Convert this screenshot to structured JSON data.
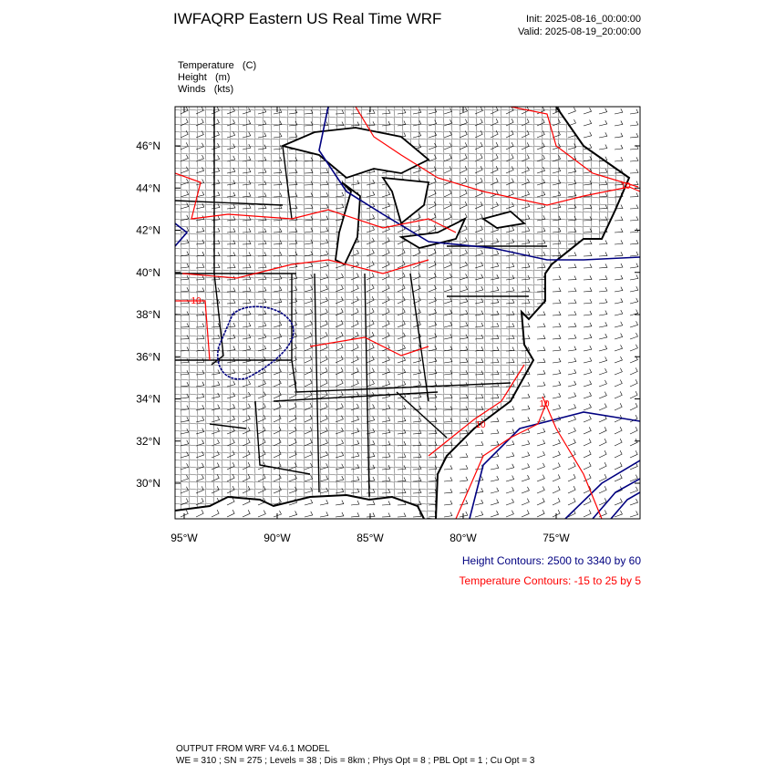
{
  "header": {
    "title": "IWFAQRP Eastern US Real Time WRF",
    "init": "Init: 2025-08-16_00:00:00",
    "valid": "Valid: 2025-08-19_20:00:00"
  },
  "fields": [
    "Temperature   (C)",
    "Height   (m)",
    "Winds   (kts)"
  ],
  "map": {
    "lon_ticks": [
      {
        "value": -95,
        "label": "95°W"
      },
      {
        "value": -90,
        "label": "90°W"
      },
      {
        "value": -85,
        "label": "85°W"
      },
      {
        "value": -80,
        "label": "80°W"
      },
      {
        "value": -75,
        "label": "75°W"
      }
    ],
    "lat_ticks": [
      {
        "value": 46,
        "label": "46°N"
      },
      {
        "value": 44,
        "label": "44°N"
      },
      {
        "value": 42,
        "label": "42°N"
      },
      {
        "value": 40,
        "label": "40°N"
      },
      {
        "value": 38,
        "label": "38°N"
      },
      {
        "value": 36,
        "label": "36°N"
      },
      {
        "value": 34,
        "label": "34°N"
      },
      {
        "value": 32,
        "label": "32°N"
      },
      {
        "value": 30,
        "label": "30°N"
      }
    ],
    "contour_labels": [
      "10",
      "10",
      "10",
      "10"
    ]
  },
  "legend": {
    "height": "Height Contours: 2500 to 3340 by 60",
    "temperature": "Temperature Contours: -15 to 25 by 5"
  },
  "footer": {
    "line1": "OUTPUT FROM WRF V4.6.1 MODEL",
    "line2": "WE = 310 ; SN = 275 ; Levels = 38 ; Dis = 8km ; Phys Opt = 8 ; PBL Opt = 1 ; Cu Opt = 3"
  }
}
